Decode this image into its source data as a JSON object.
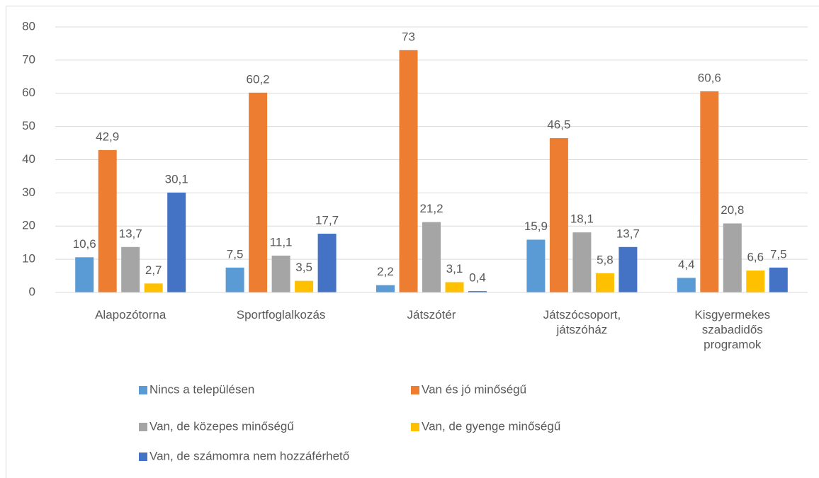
{
  "chart_data": {
    "type": "bar",
    "categories": [
      "Alapozótorna",
      "Sportfoglalkozás",
      "Játszótér",
      "Játszócsoport, játszóház",
      "Kisgyermekes szabadidős programok"
    ],
    "series": [
      {
        "name": "Nincs a településen",
        "color": "#5b9bd5",
        "values": [
          10.6,
          7.5,
          2.2,
          15.9,
          4.4
        ],
        "value_labels": [
          "10,6",
          "7,5",
          "2,2",
          "15,9",
          "4,4"
        ]
      },
      {
        "name": "Van és jó minőségű",
        "color": "#ed7d31",
        "values": [
          42.9,
          60.2,
          73,
          46.5,
          60.6
        ],
        "value_labels": [
          "42,9",
          "60,2",
          "73",
          "46,5",
          "60,6"
        ]
      },
      {
        "name": "Van, de közepes minőségű",
        "color": "#a5a5a5",
        "values": [
          13.7,
          11.1,
          21.2,
          18.1,
          20.8
        ],
        "value_labels": [
          "13,7",
          "11,1",
          "21,2",
          "18,1",
          "20,8"
        ]
      },
      {
        "name": "Van, de gyenge minőségű",
        "color": "#ffc000",
        "values": [
          2.7,
          3.5,
          3.1,
          5.8,
          6.6
        ],
        "value_labels": [
          "2,7",
          "3,5",
          "3,1",
          "5,8",
          "6,6"
        ]
      },
      {
        "name": "Van, de számomra nem hozzáférhető",
        "color": "#4472c4",
        "values": [
          30.1,
          17.7,
          0.4,
          13.7,
          7.5
        ],
        "value_labels": [
          "30,1",
          "17,7",
          "0,4",
          "13,7",
          "7,5"
        ]
      }
    ],
    "ylim": [
      0,
      80
    ],
    "yticks": [
      0,
      10,
      20,
      30,
      40,
      50,
      60,
      70,
      80
    ],
    "grid": true,
    "legend": "bottom"
  }
}
